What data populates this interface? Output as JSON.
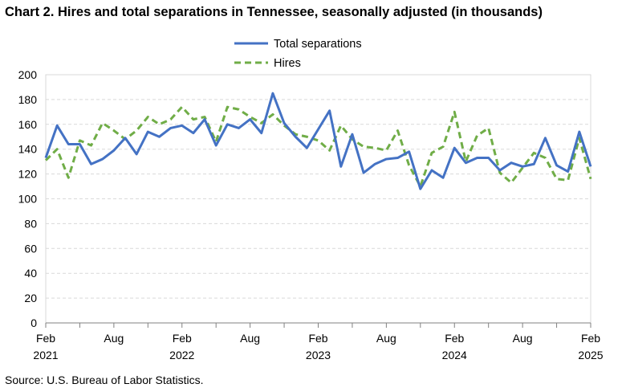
{
  "page": {
    "title": "Chart 2. Hires and total separations in Tennessee, seasonally adjusted (in thousands)",
    "source": "Source: U.S. Bureau of Labor Statistics."
  },
  "chart_data": {
    "type": "line",
    "title": "Chart 2. Hires and total separations in Tennessee, seasonally adjusted (in thousands)",
    "xlabel": "",
    "ylabel": "",
    "ylim": [
      0,
      200
    ],
    "yticks": [
      0,
      20,
      40,
      60,
      80,
      100,
      120,
      140,
      160,
      180,
      200
    ],
    "grid": true,
    "legend_position": "top-center",
    "x": [
      "2021-02",
      "2021-03",
      "2021-04",
      "2021-05",
      "2021-06",
      "2021-07",
      "2021-08",
      "2021-09",
      "2021-10",
      "2021-11",
      "2021-12",
      "2022-01",
      "2022-02",
      "2022-03",
      "2022-04",
      "2022-05",
      "2022-06",
      "2022-07",
      "2022-08",
      "2022-09",
      "2022-10",
      "2022-11",
      "2022-12",
      "2023-01",
      "2023-02",
      "2023-03",
      "2023-04",
      "2023-05",
      "2023-06",
      "2023-07",
      "2023-08",
      "2023-09",
      "2023-10",
      "2023-11",
      "2023-12",
      "2024-01",
      "2024-02",
      "2024-03",
      "2024-04",
      "2024-05",
      "2024-06",
      "2024-07",
      "2024-08",
      "2024-09",
      "2024-10",
      "2024-11",
      "2024-12",
      "2025-01",
      "2025-02"
    ],
    "xtick_labels": [
      {
        "index": 0,
        "month": "Feb",
        "year": "2021"
      },
      {
        "index": 6,
        "month": "Aug",
        "year": ""
      },
      {
        "index": 12,
        "month": "Feb",
        "year": "2022"
      },
      {
        "index": 18,
        "month": "Aug",
        "year": ""
      },
      {
        "index": 24,
        "month": "Feb",
        "year": "2023"
      },
      {
        "index": 30,
        "month": "Aug",
        "year": ""
      },
      {
        "index": 36,
        "month": "Feb",
        "year": "2024"
      },
      {
        "index": 42,
        "month": "Aug",
        "year": ""
      },
      {
        "index": 48,
        "month": "Feb",
        "year": "2025"
      }
    ],
    "series": [
      {
        "name": "Total separations",
        "color": "#4472c4",
        "style": "solid",
        "values": [
          133,
          159,
          144,
          144,
          128,
          132,
          139,
          149,
          136,
          154,
          150,
          157,
          159,
          153,
          164,
          143,
          160,
          157,
          164,
          153,
          185,
          161,
          150,
          141,
          156,
          171,
          126,
          152,
          121,
          128,
          132,
          133,
          138,
          108,
          123,
          117,
          141,
          129,
          133,
          133,
          123,
          129,
          126,
          128,
          149,
          127,
          122,
          154,
          126
        ]
      },
      {
        "name": "Hires",
        "color": "#70ad47",
        "style": "dashed",
        "values": [
          131,
          140,
          117,
          147,
          143,
          161,
          155,
          148,
          155,
          166,
          160,
          164,
          174,
          164,
          166,
          146,
          174,
          172,
          166,
          161,
          168,
          159,
          152,
          150,
          147,
          139,
          159,
          148,
          142,
          141,
          139,
          155,
          127,
          110,
          137,
          142,
          170,
          130,
          151,
          157,
          121,
          113,
          125,
          137,
          133,
          116,
          115,
          149,
          116
        ]
      }
    ]
  }
}
